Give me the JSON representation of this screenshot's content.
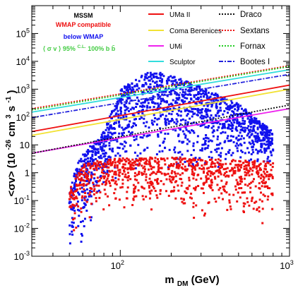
{
  "chart_data": {
    "type": "scatter",
    "xlabel": "m",
    "xlabel_sub": "DM",
    "xlabel_unit": " (GeV)",
    "ylabel": "<σv> (10",
    "ylabel_sup": "-26",
    "ylabel_unit": " cm",
    "ylabel_sup2": "3",
    "ylabel_unit2": "s",
    "ylabel_sup3": "-1",
    "ylabel_end": ")",
    "x_scale": "log",
    "y_scale": "log",
    "xlim": [
      30,
      1000
    ],
    "ylim": [
      0.001,
      1000000
    ],
    "x_tick_labels": [
      {
        "value": 100,
        "base": "10",
        "exp": "2"
      },
      {
        "value": 1000,
        "base": "10",
        "exp": "3"
      }
    ],
    "y_tick_labels": [
      {
        "value": 0.001,
        "base": "10",
        "exp": "-3"
      },
      {
        "value": 0.01,
        "base": "10",
        "exp": "-2"
      },
      {
        "value": 0.1,
        "base": "10",
        "exp": "-1"
      },
      {
        "value": 1,
        "text": "1"
      },
      {
        "value": 10,
        "text": "10"
      },
      {
        "value": 100,
        "base": "10",
        "exp": "2"
      },
      {
        "value": 1000,
        "base": "10",
        "exp": "3"
      },
      {
        "value": 10000,
        "base": "10",
        "exp": "4"
      },
      {
        "value": 100000,
        "base": "10",
        "exp": "5"
      }
    ],
    "annotations": {
      "model": "MSSM",
      "wmap_compatible": "WMAP compatible",
      "below_wmap": "below WMAP",
      "cl_line_a": "⟨ σ v ⟩",
      "cl_line_b": "95%",
      "cl_line_sup": "C.L.",
      "cl_line_c": " 100% b b̄"
    },
    "scatter_series": [
      {
        "name": "WMAP compatible",
        "color": "#ee1111",
        "envelope": [
          {
            "x": 50,
            "low": 0.003,
            "high": 0.3
          },
          {
            "x": 60,
            "low": 0.01,
            "high": 2
          },
          {
            "x": 80,
            "low": 0.02,
            "high": 3
          },
          {
            "x": 120,
            "low": 0.03,
            "high": 3.5
          },
          {
            "x": 200,
            "low": 0.02,
            "high": 3.5
          },
          {
            "x": 400,
            "low": 0.01,
            "high": 3
          },
          {
            "x": 800,
            "low": 0.005,
            "high": 2.5
          }
        ]
      },
      {
        "name": "below WMAP",
        "color": "#1111ee",
        "envelope": [
          {
            "x": 50,
            "low": 0.001,
            "high": 0.5
          },
          {
            "x": 60,
            "low": 0.002,
            "high": 5
          },
          {
            "x": 80,
            "low": 0.3,
            "high": 30
          },
          {
            "x": 100,
            "low": 0.5,
            "high": 1000
          },
          {
            "x": 150,
            "low": 1,
            "high": 5000
          },
          {
            "x": 250,
            "low": 1,
            "high": 2000
          },
          {
            "x": 500,
            "low": 1.5,
            "high": 300
          },
          {
            "x": 800,
            "low": 2,
            "high": 30
          }
        ]
      }
    ],
    "limit_lines": [
      {
        "name": "UMa II",
        "color": "#ee1111",
        "style": "solid",
        "y_at_30": 30,
        "y_at_1000": 1400
      },
      {
        "name": "Coma Berenices",
        "color": "#f2e234",
        "style": "solid",
        "y_at_30": 22,
        "y_at_1000": 1000
      },
      {
        "name": "UMi",
        "color": "#ee22ee",
        "style": "solid",
        "y_at_30": 5,
        "y_at_1000": 200
      },
      {
        "name": "Sculptor",
        "color": "#33dddd",
        "style": "solid",
        "y_at_30": 150,
        "y_at_1000": 5000
      },
      {
        "name": "Draco",
        "color": "#111111",
        "style": "dotted",
        "y_at_30": 5,
        "y_at_1000": 270
      },
      {
        "name": "Sextans",
        "color": "#ee1111",
        "style": "dotted",
        "y_at_30": 200,
        "y_at_1000": 7000
      },
      {
        "name": "Fornax",
        "color": "#22cc22",
        "style": "dotted",
        "y_at_30": 180,
        "y_at_1000": 6500
      },
      {
        "name": "Bootes I",
        "color": "#2222dd",
        "style": "dashdot",
        "y_at_30": 95,
        "y_at_1000": 3400
      }
    ]
  },
  "colors": {
    "wmap_compatible": "#ee1111",
    "below_wmap": "#1111ee",
    "cl_note": "#44cc44"
  }
}
